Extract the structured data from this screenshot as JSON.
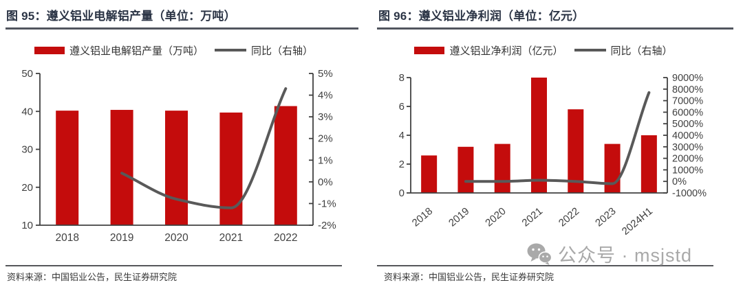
{
  "figures": [
    {
      "title": "图 95：遵义铝业电解铝产量（单位：万吨）",
      "legend": {
        "bar": "遵义铝业电解铝产量（万吨）",
        "line": "同比（右轴）"
      },
      "source": "资料来源：中国铝业公告，民生证券研究院"
    },
    {
      "title": "图 96：遵义铝业净利润（单位：亿元）",
      "legend": {
        "bar": "遵义铝业净利润（亿元）",
        "line": "同比（右轴）"
      },
      "source": "资料来源：中国铝业公告，民生证券研究院"
    }
  ],
  "watermark": {
    "icon": "wechat-icon",
    "text": "公众号 · msjstd"
  },
  "colors": {
    "bar_red": "#C40C0C",
    "line_gray": "#595959",
    "axis": "#404040",
    "axis_text": "#404040",
    "title_navy": "#2B3445",
    "watermark_gray": "#A9A9A9"
  },
  "chart_data": [
    {
      "type": "bar",
      "title": "图 95：遵义铝业电解铝产量（单位：万吨）",
      "categories": [
        "2018",
        "2019",
        "2020",
        "2021",
        "2022"
      ],
      "series": [
        {
          "name": "遵义铝业电解铝产量（万吨）",
          "kind": "bar",
          "axis": "left",
          "values": [
            40.2,
            40.4,
            40.2,
            39.7,
            41.4
          ]
        },
        {
          "name": "同比（右轴）",
          "kind": "line",
          "axis": "right",
          "unit": "%",
          "values": [
            null,
            0.4,
            -0.8,
            -1.2,
            4.3
          ]
        }
      ],
      "left_axis": {
        "min": 10,
        "max": 50,
        "ticks": [
          10,
          20,
          30,
          40,
          50
        ],
        "tick_labels": [
          "10",
          "20",
          "30",
          "40",
          "50"
        ]
      },
      "right_axis": {
        "min": -2,
        "max": 5,
        "ticks": [
          -2,
          -1,
          0,
          1,
          2,
          3,
          4,
          5
        ],
        "tick_labels": [
          "-2%",
          "-1%",
          "0%",
          "1%",
          "2%",
          "3%",
          "4%",
          "5%"
        ]
      },
      "grid": false,
      "legend_position": "top",
      "x_label_rotation": 0
    },
    {
      "type": "bar",
      "title": "图 96：遵义铝业净利润（单位：亿元）",
      "categories": [
        "2018",
        "2019",
        "2020",
        "2021",
        "2022",
        "2023",
        "2024H1"
      ],
      "series": [
        {
          "name": "遵义铝业净利润（亿元）",
          "kind": "bar",
          "axis": "left",
          "values": [
            2.6,
            3.2,
            3.4,
            8.0,
            5.8,
            3.4,
            4.0
          ]
        },
        {
          "name": "同比（右轴）",
          "kind": "line",
          "axis": "right",
          "unit": "%",
          "values": [
            null,
            0,
            0,
            100,
            0,
            -200,
            7700
          ]
        }
      ],
      "left_axis": {
        "min": 0,
        "max": 8,
        "ticks": [
          0,
          2,
          4,
          6,
          8
        ],
        "tick_labels": [
          "0",
          "2",
          "4",
          "6",
          "8"
        ]
      },
      "right_axis": {
        "min": -1000,
        "max": 9000,
        "ticks": [
          -1000,
          0,
          1000,
          2000,
          3000,
          4000,
          5000,
          6000,
          7000,
          8000,
          9000
        ],
        "tick_labels": [
          "-1000%",
          "0%",
          "1000%",
          "2000%",
          "3000%",
          "4000%",
          "5000%",
          "6000%",
          "7000%",
          "8000%",
          "9000%"
        ]
      },
      "grid": false,
      "legend_position": "top",
      "x_label_rotation": -40
    }
  ]
}
